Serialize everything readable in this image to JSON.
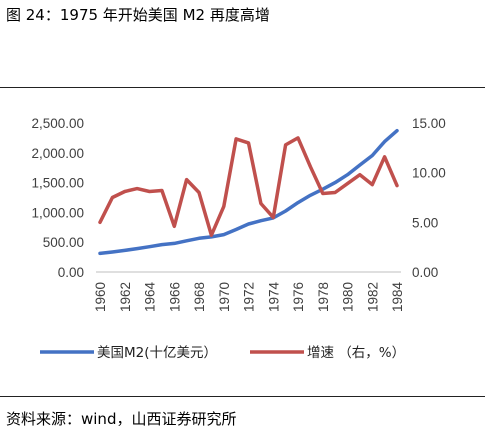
{
  "figure": {
    "title": "图 24：1975 年开始美国 M2 再度高增",
    "source": "资料来源：wind，山西证券研究所"
  },
  "colors": {
    "m2": "#4472C4",
    "growth": "#C0504D"
  },
  "chart_data": {
    "type": "line",
    "title": "",
    "x": [
      1960,
      1961,
      1962,
      1963,
      1964,
      1965,
      1966,
      1967,
      1968,
      1969,
      1970,
      1971,
      1972,
      1973,
      1974,
      1975,
      1976,
      1977,
      1978,
      1979,
      1980,
      1981,
      1982,
      1983,
      1984
    ],
    "x_tick_labels": [
      "1960",
      "1962",
      "1964",
      "1966",
      "1968",
      "1970",
      "1972",
      "1974",
      "1976",
      "1978",
      "1980",
      "1982",
      "1984"
    ],
    "left_axis": {
      "ylim": [
        0,
        2500
      ],
      "ticks": [
        "0.00",
        "500.00",
        "1,000.00",
        "1,500.00",
        "2,000.00",
        "2,500.00"
      ]
    },
    "right_axis": {
      "ylim": [
        0,
        15
      ],
      "ticks": [
        "0.00",
        "5.00",
        "10.00",
        "15.00"
      ]
    },
    "legend_position": "bottom",
    "grid": false,
    "series": [
      {
        "name": "美国M2(十亿美元）",
        "axis": "left",
        "values": [
          312,
          335,
          362,
          393,
          424,
          459,
          480,
          524,
          566,
          589,
          628,
          713,
          805,
          861,
          908,
          1023,
          1164,
          1287,
          1389,
          1500,
          1633,
          1796,
          1954,
          2188,
          2370
        ]
      },
      {
        "name": "增速 （右，%）",
        "axis": "right",
        "values": [
          5.0,
          7.5,
          8.1,
          8.4,
          8.1,
          8.2,
          4.6,
          9.3,
          8.0,
          3.7,
          6.6,
          13.4,
          13.0,
          6.9,
          5.5,
          12.8,
          13.5,
          10.6,
          7.9,
          8.0,
          8.9,
          9.8,
          8.8,
          11.6,
          8.7
        ]
      }
    ]
  }
}
